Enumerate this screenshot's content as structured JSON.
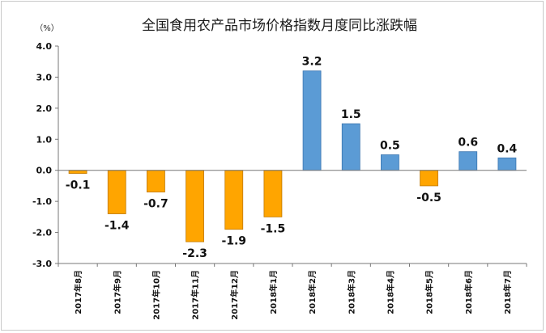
{
  "chart_data": {
    "type": "bar",
    "title": "全国食用农产品市场价格指数月度同比涨跌幅",
    "unit_label": "（%）",
    "xlabel": "",
    "ylabel": "%",
    "ylim": [
      -3.0,
      4.0
    ],
    "yticks": [
      "4.0",
      "3.0",
      "2.0",
      "1.0",
      "0.0",
      "-1.0",
      "-2.0",
      "-3.0"
    ],
    "ytick_values": [
      4,
      3,
      2,
      1,
      0,
      -1,
      -2,
      -3
    ],
    "categories": [
      "2017年8月",
      "2017年9月",
      "2017年10月",
      "2017年11月",
      "2017年12月",
      "2018年1月",
      "2018年2月",
      "2018年3月",
      "2018年4月",
      "2018年5月",
      "2018年6月",
      "2018年7月"
    ],
    "values": [
      -0.1,
      -1.4,
      -0.7,
      -2.3,
      -1.9,
      -1.5,
      3.2,
      1.5,
      0.5,
      -0.5,
      0.6,
      0.4
    ],
    "value_labels": [
      "-0.1",
      "-1.4",
      "-0.7",
      "-2.3",
      "-1.9",
      "-1.5",
      "3.2",
      "1.5",
      "0.5",
      "-0.5",
      "0.6",
      "0.4"
    ],
    "colors": {
      "negative_fill": "#FFA500",
      "negative_stroke": "#C07800",
      "positive_fill": "#5B9BD5",
      "positive_stroke": "#3A75B0",
      "axis": "#777777"
    }
  }
}
